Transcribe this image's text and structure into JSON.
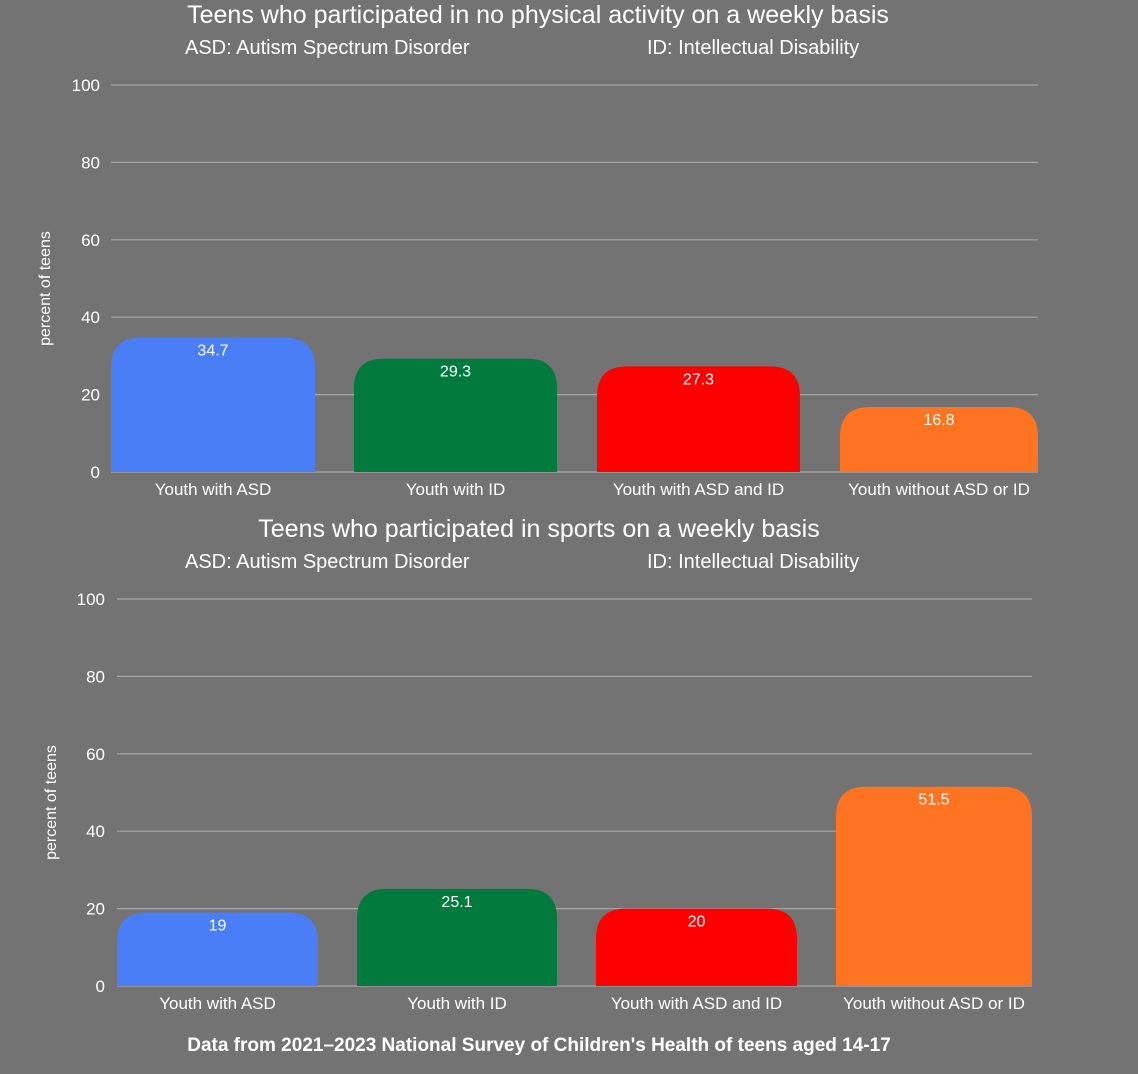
{
  "chart_data": [
    {
      "type": "bar",
      "title": "Teens who participated in no physical activity on a weekly basis",
      "definitions": [
        "ASD: Autism Spectrum Disorder",
        "ID: Intellectual Disability"
      ],
      "ylabel": "percent of teens",
      "xlabel": "",
      "ylim": [
        0,
        100
      ],
      "yticks": [
        0,
        20,
        40,
        60,
        80,
        100
      ],
      "categories": [
        "Youth with ASD",
        "Youth with ID",
        "Youth with ASD and ID",
        "Youth without ASD or ID"
      ],
      "values": [
        34.7,
        29.3,
        27.3,
        16.8
      ],
      "colors": [
        "#4a7ef7",
        "#007a3d",
        "#ff0000",
        "#ff7420"
      ],
      "grid": true,
      "data_labels": true
    },
    {
      "type": "bar",
      "title": "Teens who participated in sports on a weekly basis",
      "definitions": [
        "ASD: Autism Spectrum Disorder",
        "ID: Intellectual Disability"
      ],
      "ylabel": "percent of teens",
      "xlabel": "",
      "ylim": [
        0,
        100
      ],
      "yticks": [
        0,
        20,
        40,
        60,
        80,
        100
      ],
      "categories": [
        "Youth with ASD",
        "Youth with ID",
        "Youth with ASD and ID",
        "Youth without ASD or ID"
      ],
      "values": [
        19,
        25.1,
        20,
        51.5
      ],
      "colors": [
        "#4a7ef7",
        "#007a3d",
        "#ff0000",
        "#ff7420"
      ],
      "grid": true,
      "data_labels": true
    }
  ],
  "footer": {
    "source_note": "Data from 2021–2023 National Survey of Children's Health of teens aged 14-17"
  },
  "colors": {
    "background": "#737373",
    "gridline": "#a6a6a6",
    "text": "#ffffff"
  }
}
